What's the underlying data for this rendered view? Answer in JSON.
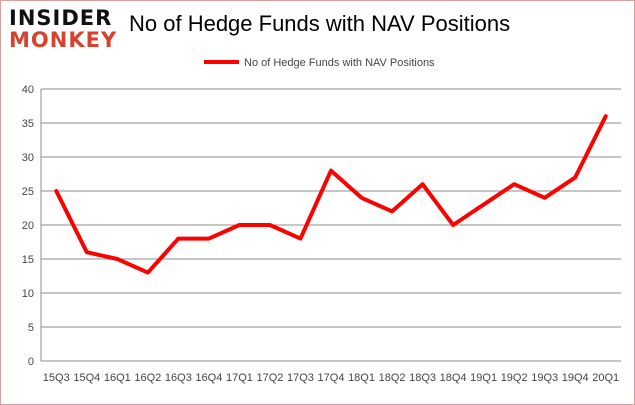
{
  "logo": {
    "line1": "INSIDER",
    "line2": "MONKEY"
  },
  "chart_data": {
    "type": "line",
    "title": "No of Hedge Funds with NAV Positions",
    "xlabel": "",
    "ylabel": "",
    "categories": [
      "15Q3",
      "15Q4",
      "16Q1",
      "16Q2",
      "16Q3",
      "16Q4",
      "17Q1",
      "17Q2",
      "17Q3",
      "17Q4",
      "18Q1",
      "18Q2",
      "18Q3",
      "18Q4",
      "19Q1",
      "19Q2",
      "19Q3",
      "19Q4",
      "20Q1"
    ],
    "series": [
      {
        "name": "No of Hedge Funds with NAV Positions",
        "color": "#ff0000",
        "values": [
          25,
          16,
          15,
          13,
          18,
          18,
          20,
          20,
          18,
          28,
          24,
          22,
          26,
          20,
          23,
          26,
          24,
          27,
          36
        ]
      }
    ],
    "ylim": [
      0,
      40
    ],
    "yticks": [
      0,
      5,
      10,
      15,
      20,
      25,
      30,
      35,
      40
    ],
    "grid": true,
    "legend": "top"
  }
}
